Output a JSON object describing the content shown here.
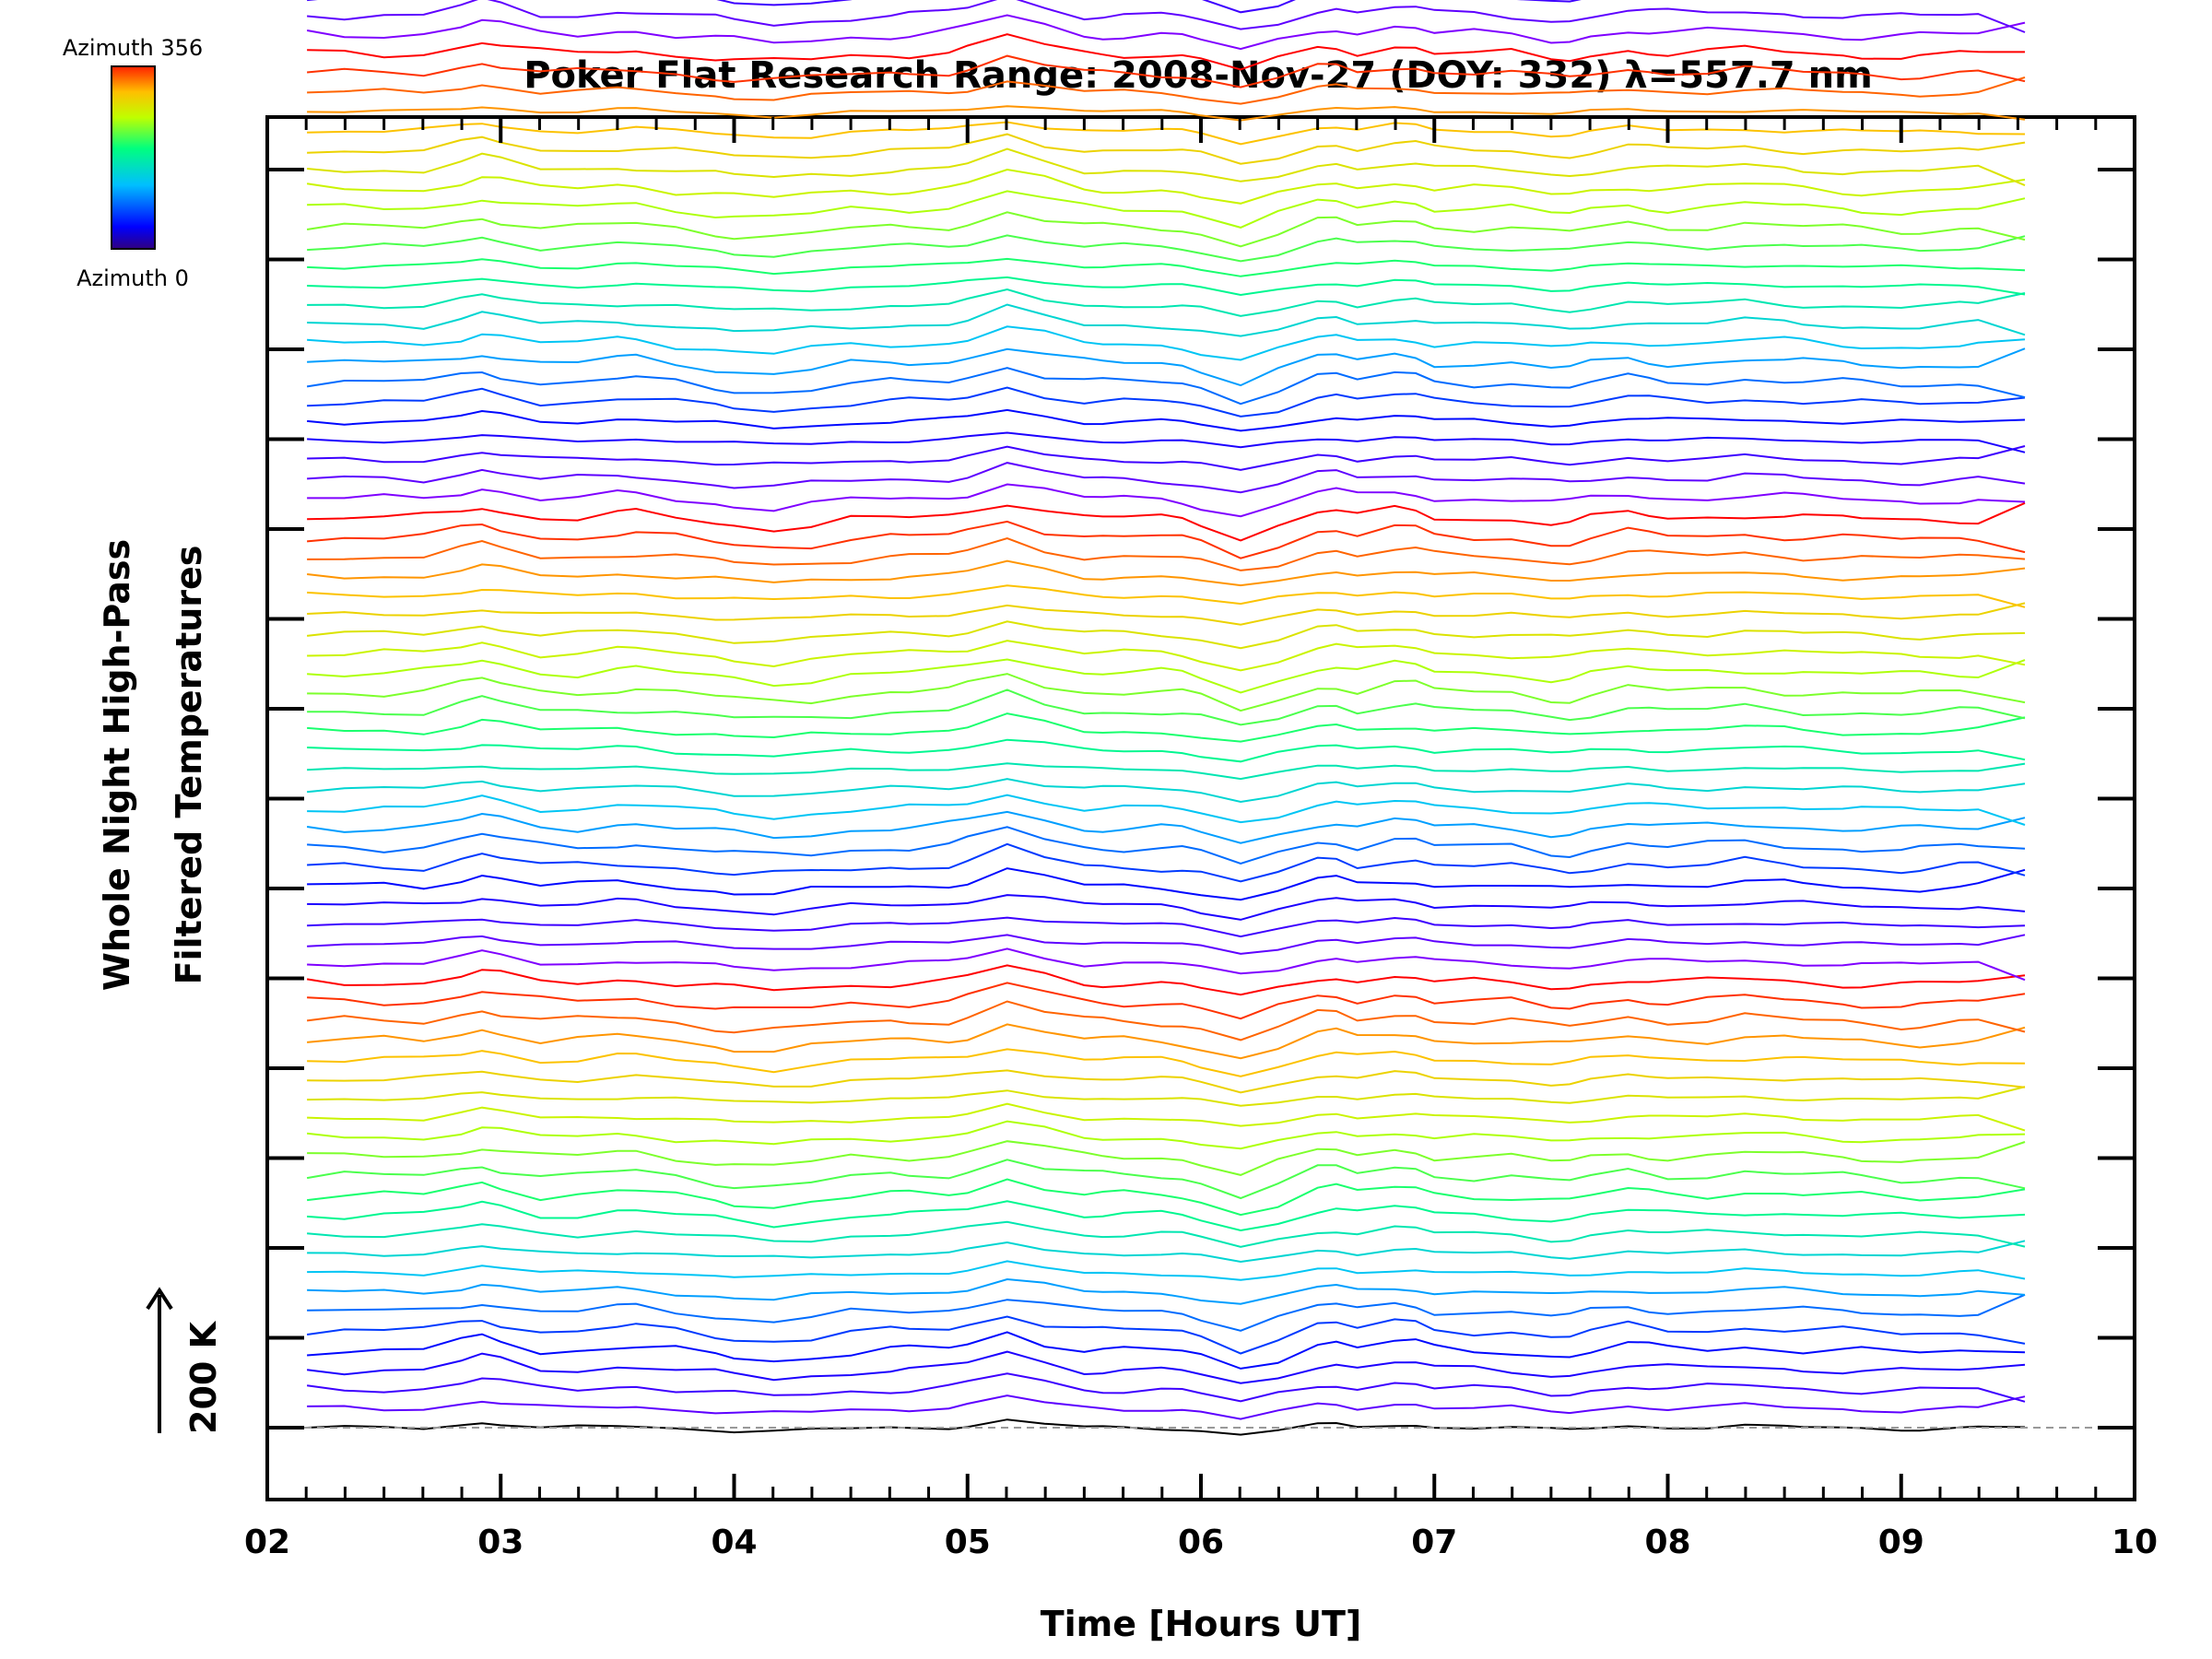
{
  "chart_data": {
    "type": "line",
    "title": "Poker Flat Research Range: 2008-Nov-27 (DOY: 332) λ=557.7 nm",
    "xlabel": "Time [Hours UT]",
    "ylabel_line1": "Whole Night High-Pass",
    "ylabel_line2": "Filtered Temperatures",
    "xlim": [
      2,
      10
    ],
    "x_ticks": [
      "02",
      "03",
      "04",
      "05",
      "06",
      "07",
      "08",
      "09",
      "10"
    ],
    "scale_bar_label": "200 K",
    "scale_bar_value_K": 200,
    "colorbar": {
      "top_label": "Azimuth 356",
      "bottom_label": "Azimuth 0",
      "colormap": "rainbow",
      "min": 0,
      "max": 356
    },
    "trace_offset_K": 28,
    "stacked": true,
    "x": [
      2.17,
      2.33,
      2.5,
      2.67,
      2.83,
      2.92,
      3.0,
      3.17,
      3.33,
      3.5,
      3.58,
      3.75,
      3.92,
      4.0,
      4.17,
      4.33,
      4.5,
      4.67,
      4.75,
      4.92,
      5.0,
      5.17,
      5.33,
      5.5,
      5.58,
      5.67,
      5.83,
      5.92,
      6.0,
      6.17,
      6.33,
      6.5,
      6.58,
      6.67,
      6.83,
      6.92,
      7.0,
      7.17,
      7.33,
      7.5,
      7.58,
      7.67,
      7.83,
      7.92,
      8.0,
      8.17,
      8.33,
      8.5,
      8.58,
      8.75,
      8.83,
      9.0,
      9.08,
      9.25,
      9.33,
      9.53
    ],
    "series_count": 120,
    "color_stops": [
      "#7f00ff",
      "#0000ff",
      "#00bfff",
      "#00ff7f",
      "#bfff00",
      "#ffbf00",
      "#ff0000"
    ]
  }
}
